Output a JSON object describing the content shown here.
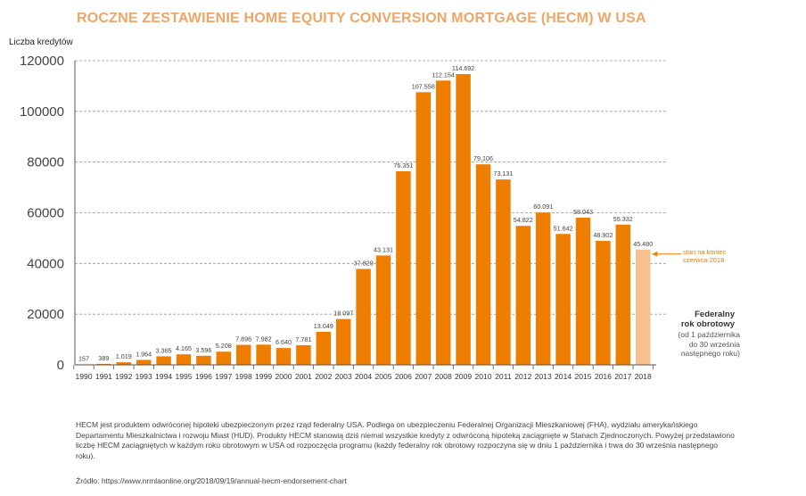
{
  "title": "ROCZNE ZESTAWIENIE HOME EQUITY CONVERSION MORTGAGE (HECM) W USA",
  "colors": {
    "bar": "#ef7d00",
    "bar_partial": "#f7c08e",
    "title": "#f0a566",
    "grid": "#9a9a9a"
  },
  "chart_data": {
    "type": "bar",
    "ylabel": "Liczba kredytów",
    "xlabel": "",
    "ylim": [
      0,
      120000
    ],
    "yticks": [
      "0",
      "20000",
      "40000",
      "60000",
      "80000",
      "100000",
      "120000"
    ],
    "ytick_values": [
      0,
      20000,
      40000,
      60000,
      80000,
      100000,
      120000
    ],
    "grid": "horizontal dashed",
    "categories": [
      "1990",
      "1991",
      "1992",
      "1993",
      "1994",
      "1995",
      "1996",
      "1997",
      "1998",
      "1999",
      "2000",
      "2001",
      "2002",
      "2003",
      "2004",
      "2005",
      "2006",
      "2007",
      "2008",
      "2009",
      "2010",
      "2011",
      "2012",
      "2013",
      "2014",
      "2015",
      "2016",
      "2017",
      "2018"
    ],
    "values": [
      157,
      389,
      1019,
      1964,
      3365,
      4165,
      3596,
      5208,
      7896,
      7982,
      6640,
      7781,
      13049,
      18097,
      37829,
      43131,
      76351,
      107558,
      112154,
      114692,
      79106,
      73131,
      54822,
      60091,
      51642,
      58043,
      48902,
      55332,
      45480
    ],
    "labels": [
      "157",
      "389",
      "1.019",
      "1.964",
      "3.365",
      "4.165",
      "3.596",
      "5.208",
      "7.896",
      "7.982",
      "6.640",
      "7.781",
      "13.049",
      "18.097",
      "37.829",
      "43.131",
      "76.351",
      "107.558",
      "112.154",
      "114.692",
      "79.106",
      "73.131",
      "54.822",
      "60.091",
      "51.642",
      "58.043",
      "48.902",
      "55.332",
      "45.480"
    ],
    "partial_index": 28,
    "annotation": {
      "line1": "stan na koniec",
      "line2": "czerwca 2018"
    },
    "fiscal_year": {
      "title_line1": "Federalny",
      "title_line2": "rok obrotowy",
      "desc_line1": "(od 1 października",
      "desc_line2": "do 30 września",
      "desc_line3": "następnego roku)"
    }
  },
  "note": "HECM jest produktem odwróconej hipoteki ubezpieczonym przez rząd federalny USA. Podlega on ubezpieczeniu Federalnej Organizacji Mieszkaniowej (FHA), wydziału amerykańskiego Departamentu Mieszkalnictwa i rozwoju Miast (HUD). Produkty HECM stanowią dziś niemal wszystkie kredyty z odwróconą hipoteką zaciągnięte w Stanach Zjednoczonych. Powyżej przedstawiono liczbę HECM zaciągniętych w każdym roku obrotowym w USA od rozpoczęcia programu (każdy federalny rok obrotowy rozpoczyna się w dniu 1 października i trwa do 30 września następnego roku).",
  "source": "Źródło: https://www.nrmlaonline.org/2018/09/19/annual-hecm-endorsement-chart"
}
